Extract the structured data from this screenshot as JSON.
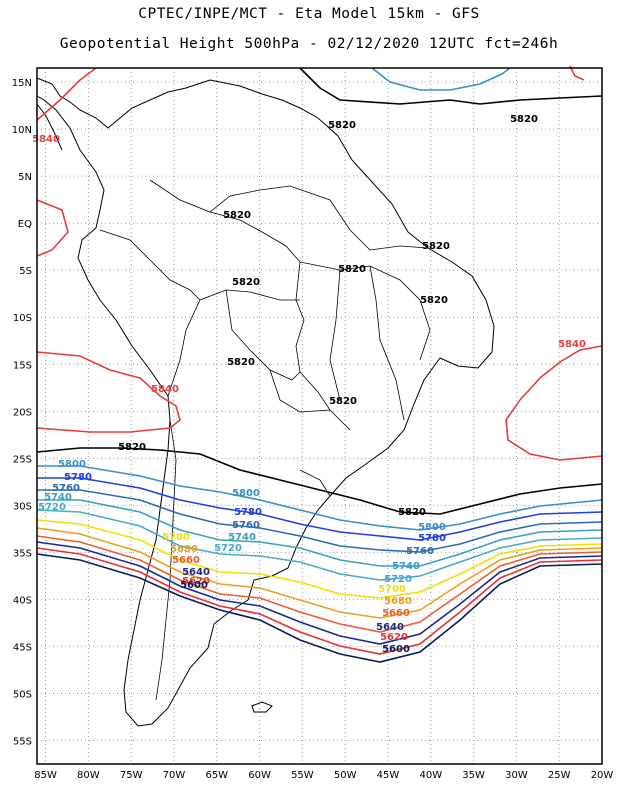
{
  "title_line1": "CPTEC/INPE/MCT -  Eta Model 15km - GFS",
  "title_line2": "Geopotential Height 500hPa - 02/12/2020 12UTC fct=246h",
  "lat_ticks": [
    "15N",
    "10N",
    "5N",
    "EQ",
    "5S",
    "10S",
    "15S",
    "20S",
    "25S",
    "30S",
    "35S",
    "40S",
    "45S",
    "50S",
    "55S"
  ],
  "lon_ticks": [
    "85W",
    "80W",
    "75W",
    "70W",
    "65W",
    "60W",
    "55W",
    "50W",
    "45W",
    "40W",
    "35W",
    "30W",
    "25W",
    "20W"
  ],
  "colors": {
    "5840": "#e83c3c",
    "5820": "#000000",
    "5800": "#3a8fc9",
    "5780": "#1f3fe0",
    "5760": "#2f6bb0",
    "5740": "#3aa0c0",
    "5720": "#4aa8c8",
    "5700": "#f0e000",
    "5680": "#e8a020",
    "5660": "#e86030",
    "5640": "#1a2a8a",
    "5620": "#e83030",
    "5600": "#0a1a5a"
  },
  "contour_labels": [
    {
      "text": "5840",
      "level": "5840"
    },
    {
      "text": "5820",
      "level": "5820"
    },
    {
      "text": "5820",
      "level": "5820"
    },
    {
      "text": "5820",
      "level": "5820"
    },
    {
      "text": "5820",
      "level": "5820"
    },
    {
      "text": "5820",
      "level": "5820"
    },
    {
      "text": "5820",
      "level": "5820"
    },
    {
      "text": "5820",
      "level": "5820"
    },
    {
      "text": "5820",
      "level": "5820"
    },
    {
      "text": "5820",
      "level": "5820"
    },
    {
      "text": "5840",
      "level": "5840"
    },
    {
      "text": "5840",
      "level": "5840"
    },
    {
      "text": "5820",
      "level": "5820"
    },
    {
      "text": "5820",
      "level": "5820"
    },
    {
      "text": "5800",
      "level": "5800"
    },
    {
      "text": "5780",
      "level": "5780"
    },
    {
      "text": "5760",
      "level": "5760"
    },
    {
      "text": "5740",
      "level": "5740"
    },
    {
      "text": "5720",
      "level": "5720"
    },
    {
      "text": "5800",
      "level": "5800"
    },
    {
      "text": "5780",
      "level": "5780"
    },
    {
      "text": "5760",
      "level": "5760"
    },
    {
      "text": "5740",
      "level": "5740"
    },
    {
      "text": "5720",
      "level": "5720"
    },
    {
      "text": "5700",
      "level": "5700"
    },
    {
      "text": "5680",
      "level": "5680"
    },
    {
      "text": "5660",
      "level": "5660"
    },
    {
      "text": "5640",
      "level": "5640"
    },
    {
      "text": "5620",
      "level": "5620"
    },
    {
      "text": "5600",
      "level": "5600"
    },
    {
      "text": "5800",
      "level": "5800"
    },
    {
      "text": "5780",
      "level": "5780"
    },
    {
      "text": "5760",
      "level": "5760"
    },
    {
      "text": "5740",
      "level": "5740"
    },
    {
      "text": "5720",
      "level": "5720"
    },
    {
      "text": "5700",
      "level": "5700"
    },
    {
      "text": "5680",
      "level": "5680"
    },
    {
      "text": "5660",
      "level": "5660"
    },
    {
      "text": "5640",
      "level": "5640"
    },
    {
      "text": "5620",
      "level": "5620"
    },
    {
      "text": "5600",
      "level": "5600"
    }
  ]
}
